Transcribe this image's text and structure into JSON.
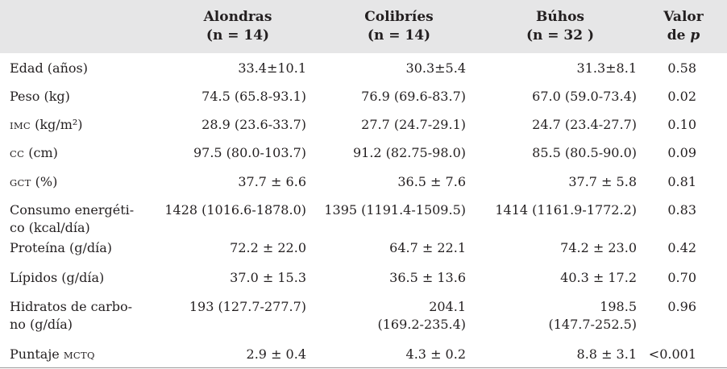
{
  "header": {
    "col1_line1": "Alondras",
    "col1_line2": "(n = 14)",
    "col2_line1": "Colibríes",
    "col2_line2": "(n = 14)",
    "col3_line1": "Búhos",
    "col3_line2": "(n = 32 )",
    "col4_line1": "Valor",
    "col4_line2_prefix": "de ",
    "col4_line2_italic": "p"
  },
  "rows": [
    {
      "label": "Edad (años)",
      "a": "33.4±10.1",
      "c": "30.3±5.4",
      "b": "31.3±8.1",
      "p": "0.58"
    },
    {
      "label": "Peso (kg)",
      "a": "74.5 (65.8-93.1)",
      "c": "76.9 (69.6-83.7)",
      "b": "67.0 (59.0-73.4)",
      "p": "0.02"
    },
    {
      "label_sc": "IMC",
      "label_rest": " (kg/m²)",
      "a": "28.9 (23.6-33.7)",
      "c": "27.7 (24.7-29.1)",
      "b": "24.7 (23.4-27.7)",
      "p": "0.10"
    },
    {
      "label_sc": "CC",
      "label_rest": " (cm)",
      "a": "97.5 (80.0-103.7)",
      "c": "91.2 (82.75-98.0)",
      "b": "85.5 (80.5-90.0)",
      "p": "0.09"
    },
    {
      "label_sc": "GCT",
      "label_rest": " (%)",
      "a": "37.7 ± 6.6",
      "c": "36.5 ± 7.6",
      "b": "37.7 ± 5.8",
      "p": "0.81"
    },
    {
      "label_line1": "Consumo energéti-",
      "label_line2": "co (kcal/día)",
      "a": "1428 (1016.6-1878.0)",
      "c": "1395 (1191.4-1509.5)",
      "b": "1414 (1161.9-1772.2)",
      "p": "0.83"
    },
    {
      "label": "Proteína (g/día)",
      "a": "72.2 ± 22.0",
      "c": "64.7 ± 22.1",
      "b": "74.2 ± 23.0",
      "p": "0.42"
    },
    {
      "label": "Lípidos (g/día)",
      "a": "37.0 ± 15.3",
      "c": "36.5 ± 13.6",
      "b": "40.3 ± 17.2",
      "p": "0.70"
    },
    {
      "label_line1": "Hidratos de carbo-",
      "label_line2": "no (g/día)",
      "a": "193 (127.7-277.7)",
      "c_line1": "204.1",
      "c_line2": "(169.2-235.4)",
      "b_line1": "198.5",
      "b_line2": "(147.7-252.5)",
      "p": "0.96"
    },
    {
      "label_prefix": "Puntaje ",
      "label_sc": "MCTQ",
      "a": "2.9 ± 0.4",
      "c": "4.3 ± 0.2",
      "b": "8.8 ± 3.1",
      "p": "<0.001"
    }
  ]
}
